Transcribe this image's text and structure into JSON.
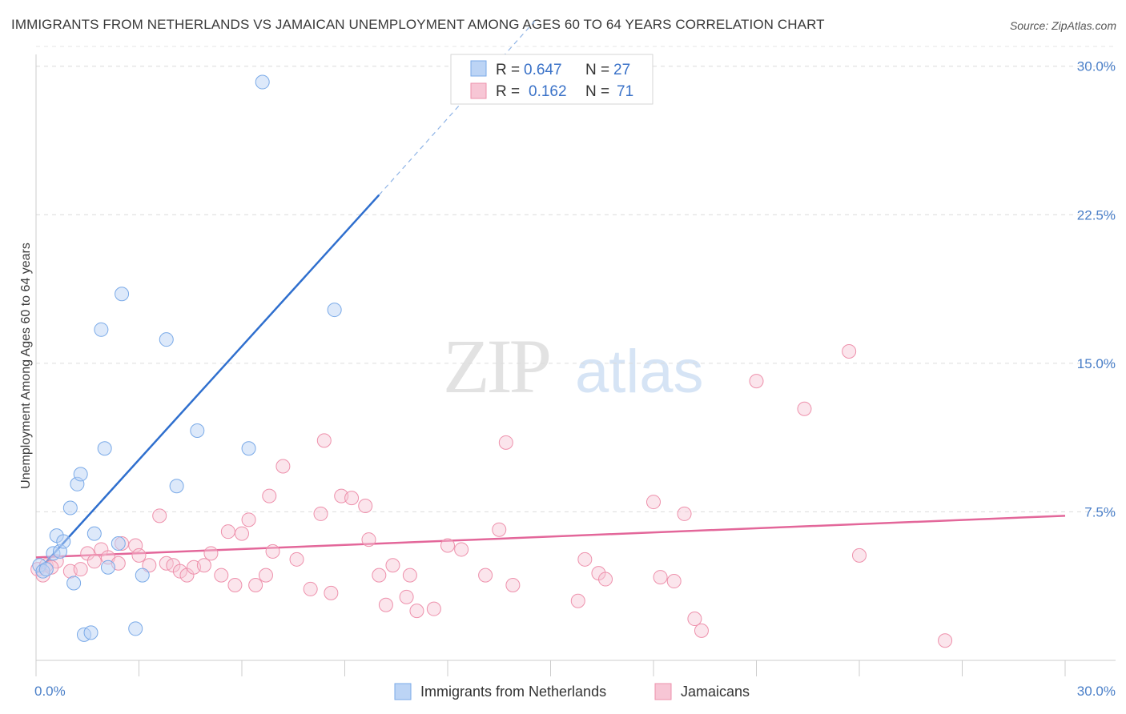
{
  "header": {
    "title": "IMMIGRANTS FROM NETHERLANDS VS JAMAICAN UNEMPLOYMENT AMONG AGES 60 TO 64 YEARS CORRELATION CHART",
    "source": "Source: ZipAtlas.com"
  },
  "watermark": {
    "zip": "ZIP",
    "atlas": "atlas"
  },
  "colors": {
    "blue": "#7aaae8",
    "blue_fill": "#bcd4f5",
    "blue_line": "#2f6fce",
    "pink": "#ee91ac",
    "pink_fill": "#f7c6d5",
    "pink_line": "#e3679a",
    "tick_blue": "#4a7fc8"
  },
  "chart_data": {
    "type": "scatter",
    "title": "IMMIGRANTS FROM NETHERLANDS VS JAMAICAN UNEMPLOYMENT AMONG AGES 60 TO 64 YEARS CORRELATION CHART",
    "xlabel": "",
    "ylabel": "Unemployment Among Ages 60 to 64 years",
    "xlim": [
      0,
      30
    ],
    "ylim": [
      0,
      31
    ],
    "x_tick_labels": [
      "0.0%",
      "30.0%"
    ],
    "y_ticks": [
      7.5,
      15.0,
      22.5,
      30.0
    ],
    "y_tick_labels": [
      "7.5%",
      "15.0%",
      "22.5%",
      "30.0%"
    ],
    "grid": true,
    "legend_position": "top-center",
    "legend": [
      {
        "r_label": "R =",
        "r_value": "0.647",
        "n_label": "N =",
        "n_value": "27"
      },
      {
        "r_label": "R =",
        "r_value": "0.162",
        "n_label": "N =",
        "n_value": "71"
      }
    ],
    "series": [
      {
        "name": "Immigrants from Netherlands",
        "color": "#7aaae8",
        "trend": {
          "x": [
            0.0,
            10.0
          ],
          "y": [
            4.4,
            23.5
          ],
          "dashed_to": [
            14.6,
            32.4
          ]
        },
        "points": [
          [
            0.1,
            4.8
          ],
          [
            0.2,
            4.5
          ],
          [
            0.3,
            4.6
          ],
          [
            0.5,
            5.4
          ],
          [
            0.6,
            6.3
          ],
          [
            0.7,
            5.5
          ],
          [
            0.8,
            6.0
          ],
          [
            1.0,
            7.7
          ],
          [
            1.1,
            3.9
          ],
          [
            1.2,
            8.9
          ],
          [
            1.3,
            9.4
          ],
          [
            1.4,
            1.3
          ],
          [
            1.6,
            1.4
          ],
          [
            1.7,
            6.4
          ],
          [
            1.9,
            16.7
          ],
          [
            2.0,
            10.7
          ],
          [
            2.1,
            4.7
          ],
          [
            2.4,
            5.9
          ],
          [
            2.5,
            18.5
          ],
          [
            2.9,
            1.6
          ],
          [
            3.1,
            4.3
          ],
          [
            3.8,
            16.2
          ],
          [
            4.1,
            8.8
          ],
          [
            4.7,
            11.6
          ],
          [
            6.2,
            10.7
          ],
          [
            6.6,
            29.2
          ],
          [
            8.7,
            17.7
          ]
        ]
      },
      {
        "name": "Jamaicans",
        "color": "#ee91ac",
        "trend": {
          "x": [
            0.0,
            30.0
          ],
          "y": [
            5.2,
            7.3
          ]
        },
        "points": [
          [
            0.05,
            4.6
          ],
          [
            0.3,
            4.8
          ],
          [
            0.6,
            5.0
          ],
          [
            1.0,
            4.5
          ],
          [
            1.3,
            4.6
          ],
          [
            1.5,
            5.4
          ],
          [
            1.7,
            5.0
          ],
          [
            1.9,
            5.6
          ],
          [
            2.1,
            5.2
          ],
          [
            2.4,
            4.9
          ],
          [
            2.5,
            5.9
          ],
          [
            2.9,
            5.8
          ],
          [
            3.0,
            5.3
          ],
          [
            3.3,
            4.8
          ],
          [
            3.6,
            7.3
          ],
          [
            3.8,
            4.9
          ],
          [
            4.0,
            4.8
          ],
          [
            4.2,
            4.5
          ],
          [
            4.4,
            4.3
          ],
          [
            4.6,
            4.7
          ],
          [
            4.9,
            4.8
          ],
          [
            5.1,
            5.4
          ],
          [
            5.4,
            4.3
          ],
          [
            5.6,
            6.5
          ],
          [
            5.8,
            3.8
          ],
          [
            6.0,
            6.4
          ],
          [
            6.2,
            7.1
          ],
          [
            6.4,
            3.8
          ],
          [
            6.7,
            4.3
          ],
          [
            6.8,
            8.3
          ],
          [
            6.9,
            5.5
          ],
          [
            7.2,
            9.8
          ],
          [
            7.6,
            5.1
          ],
          [
            8.0,
            3.6
          ],
          [
            8.3,
            7.4
          ],
          [
            8.4,
            11.1
          ],
          [
            8.6,
            3.4
          ],
          [
            8.9,
            8.3
          ],
          [
            9.2,
            8.2
          ],
          [
            9.6,
            7.8
          ],
          [
            9.7,
            6.1
          ],
          [
            10.0,
            4.3
          ],
          [
            10.2,
            2.8
          ],
          [
            10.4,
            4.8
          ],
          [
            10.8,
            3.2
          ],
          [
            10.9,
            4.3
          ],
          [
            11.1,
            2.5
          ],
          [
            11.6,
            2.6
          ],
          [
            12.0,
            5.8
          ],
          [
            12.4,
            5.6
          ],
          [
            13.1,
            4.3
          ],
          [
            13.5,
            6.6
          ],
          [
            13.7,
            11.0
          ],
          [
            13.9,
            3.8
          ],
          [
            15.8,
            3.0
          ],
          [
            16.0,
            5.1
          ],
          [
            16.4,
            4.4
          ],
          [
            16.6,
            4.1
          ],
          [
            18.0,
            8.0
          ],
          [
            18.2,
            4.2
          ],
          [
            18.6,
            4.0
          ],
          [
            18.9,
            7.4
          ],
          [
            19.2,
            2.1
          ],
          [
            19.4,
            1.5
          ],
          [
            21.0,
            14.1
          ],
          [
            22.4,
            12.7
          ],
          [
            23.7,
            15.6
          ],
          [
            24.0,
            5.3
          ],
          [
            26.5,
            1.0
          ],
          [
            0.2,
            4.3
          ],
          [
            0.45,
            4.7
          ]
        ]
      }
    ]
  }
}
